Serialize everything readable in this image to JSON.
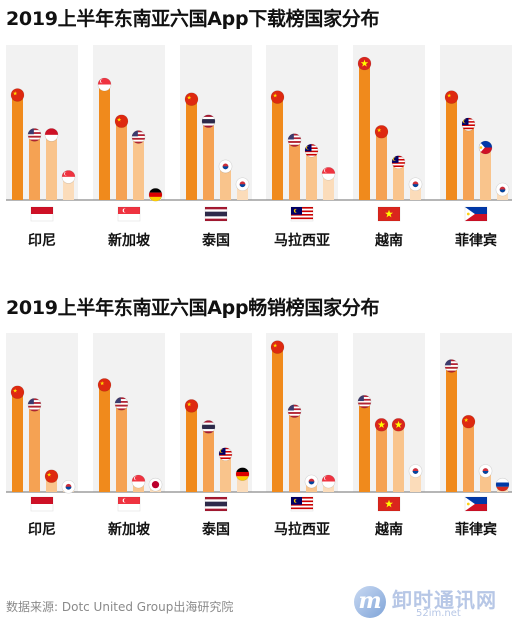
{
  "chart_data": [
    {
      "type": "bar",
      "title": "2019上半年东南亚六国App下载榜国家分布",
      "groups": [
        {
          "label": "印尼",
          "flag": "ID",
          "bars": [
            {
              "flag": "CN",
              "value": 100
            },
            {
              "flag": "US",
              "value": 62
            },
            {
              "flag": "ID",
              "value": 62
            },
            {
              "flag": "SG",
              "value": 22
            }
          ]
        },
        {
          "label": "新加坡",
          "flag": "SG",
          "bars": [
            {
              "flag": "SG",
              "value": 110
            },
            {
              "flag": "CN",
              "value": 75
            },
            {
              "flag": "US",
              "value": 60
            },
            {
              "flag": "DE",
              "value": 5
            }
          ]
        },
        {
          "label": "泰国",
          "flag": "TH",
          "bars": [
            {
              "flag": "CN",
              "value": 96
            },
            {
              "flag": "TH",
              "value": 75
            },
            {
              "flag": "KR",
              "value": 32
            },
            {
              "flag": "KR",
              "value": 15
            }
          ]
        },
        {
          "label": "马拉西亚",
          "flag": "MY",
          "bars": [
            {
              "flag": "CN",
              "value": 98
            },
            {
              "flag": "US",
              "value": 57
            },
            {
              "flag": "MY",
              "value": 47
            },
            {
              "flag": "SG",
              "value": 25
            }
          ]
        },
        {
          "label": "越南",
          "flag": "VN",
          "bars": [
            {
              "flag": "VN",
              "value": 130
            },
            {
              "flag": "CN",
              "value": 65
            },
            {
              "flag": "MY",
              "value": 36
            },
            {
              "flag": "KR",
              "value": 15
            }
          ]
        },
        {
          "label": "菲律宾",
          "flag": "PH",
          "bars": [
            {
              "flag": "CN",
              "value": 98
            },
            {
              "flag": "MY",
              "value": 72
            },
            {
              "flag": "PH",
              "value": 50
            },
            {
              "flag": "KR",
              "value": 10
            }
          ]
        }
      ]
    },
    {
      "type": "bar",
      "title": "2019上半年东南亚六国App畅销榜国家分布",
      "groups": [
        {
          "label": "印尼",
          "flag": "ID",
          "bars": [
            {
              "flag": "CN",
              "value": 95
            },
            {
              "flag": "US",
              "value": 83
            },
            {
              "flag": "CN",
              "value": 15
            },
            {
              "flag": "KR",
              "value": 5
            }
          ]
        },
        {
          "label": "新加坡",
          "flag": "SG",
          "bars": [
            {
              "flag": "CN",
              "value": 102
            },
            {
              "flag": "US",
              "value": 84
            },
            {
              "flag": "SG",
              "value": 10
            },
            {
              "flag": "JP",
              "value": 7
            }
          ]
        },
        {
          "label": "泰国",
          "flag": "TH",
          "bars": [
            {
              "flag": "CN",
              "value": 82
            },
            {
              "flag": "TH",
              "value": 62
            },
            {
              "flag": "MY",
              "value": 36
            },
            {
              "flag": "DE",
              "value": 17
            }
          ]
        },
        {
          "label": "马拉西亚",
          "flag": "MY",
          "bars": [
            {
              "flag": "CN",
              "value": 138
            },
            {
              "flag": "US",
              "value": 77
            },
            {
              "flag": "KR",
              "value": 10
            },
            {
              "flag": "SG",
              "value": 10
            }
          ]
        },
        {
          "label": "越南",
          "flag": "VN",
          "bars": [
            {
              "flag": "US",
              "value": 86
            },
            {
              "flag": "VN",
              "value": 64
            },
            {
              "flag": "VN",
              "value": 64
            },
            {
              "flag": "KR",
              "value": 20
            }
          ]
        },
        {
          "label": "菲律宾",
          "flag": "PH",
          "bars": [
            {
              "flag": "US",
              "value": 120
            },
            {
              "flag": "CN",
              "value": 67
            },
            {
              "flag": "KR",
              "value": 20
            },
            {
              "flag": "RU",
              "value": 7
            }
          ]
        }
      ]
    }
  ],
  "source": "数据来源: Dotc United Group出海研究院",
  "watermark": {
    "name": "卸时通讯网",
    "url": "52im.net"
  },
  "colors": {
    "bar1": "#f08a1c",
    "bar2": "#f5a253",
    "bar3": "#f9c48c",
    "bar4": "#fbdcba",
    "panel": "#f2f2f2",
    "axis": "#8a8a8a"
  }
}
